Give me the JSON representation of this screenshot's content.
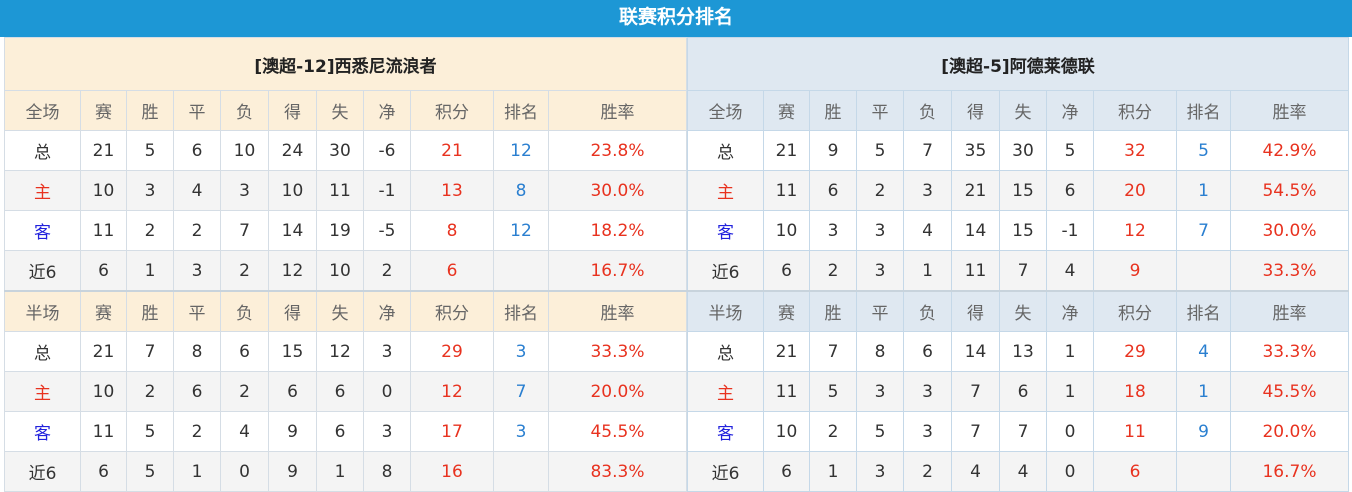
{
  "title": "联赛积分排名",
  "headers": {
    "full": "全场",
    "half": "半场",
    "cols": [
      "赛",
      "胜",
      "平",
      "负",
      "得",
      "失",
      "净",
      "积分",
      "排名",
      "胜率"
    ]
  },
  "colors": {
    "title_bar": "#1d97d5",
    "points": "#e8321f",
    "rank": "#2a7fd0",
    "home": "#e8321f",
    "away": "#2222dd"
  },
  "teams": [
    {
      "name": "[澳超-12]西悉尼流浪者",
      "full": [
        [
          "总",
          "21",
          "5",
          "6",
          "10",
          "24",
          "30",
          "-6",
          "21",
          "12",
          "23.8%"
        ],
        [
          "主",
          "10",
          "3",
          "4",
          "3",
          "10",
          "11",
          "-1",
          "13",
          "8",
          "30.0%"
        ],
        [
          "客",
          "11",
          "2",
          "2",
          "7",
          "14",
          "19",
          "-5",
          "8",
          "12",
          "18.2%"
        ],
        [
          "近6",
          "6",
          "1",
          "3",
          "2",
          "12",
          "10",
          "2",
          "6",
          "",
          "16.7%"
        ]
      ],
      "half": [
        [
          "总",
          "21",
          "7",
          "8",
          "6",
          "15",
          "12",
          "3",
          "29",
          "3",
          "33.3%"
        ],
        [
          "主",
          "10",
          "2",
          "6",
          "2",
          "6",
          "6",
          "0",
          "12",
          "7",
          "20.0%"
        ],
        [
          "客",
          "11",
          "5",
          "2",
          "4",
          "9",
          "6",
          "3",
          "17",
          "3",
          "45.5%"
        ],
        [
          "近6",
          "6",
          "5",
          "1",
          "0",
          "9",
          "1",
          "8",
          "16",
          "",
          "83.3%"
        ]
      ]
    },
    {
      "name": "[澳超-5]阿德莱德联",
      "full": [
        [
          "总",
          "21",
          "9",
          "5",
          "7",
          "35",
          "30",
          "5",
          "32",
          "5",
          "42.9%"
        ],
        [
          "主",
          "11",
          "6",
          "2",
          "3",
          "21",
          "15",
          "6",
          "20",
          "1",
          "54.5%"
        ],
        [
          "客",
          "10",
          "3",
          "3",
          "4",
          "14",
          "15",
          "-1",
          "12",
          "7",
          "30.0%"
        ],
        [
          "近6",
          "6",
          "2",
          "3",
          "1",
          "11",
          "7",
          "4",
          "9",
          "",
          "33.3%"
        ]
      ],
      "half": [
        [
          "总",
          "21",
          "7",
          "8",
          "6",
          "14",
          "13",
          "1",
          "29",
          "4",
          "33.3%"
        ],
        [
          "主",
          "11",
          "5",
          "3",
          "3",
          "7",
          "6",
          "1",
          "18",
          "1",
          "45.5%"
        ],
        [
          "客",
          "10",
          "2",
          "5",
          "3",
          "7",
          "7",
          "0",
          "11",
          "9",
          "20.0%"
        ],
        [
          "近6",
          "6",
          "1",
          "3",
          "2",
          "4",
          "4",
          "0",
          "6",
          "",
          "16.7%"
        ]
      ]
    }
  ]
}
